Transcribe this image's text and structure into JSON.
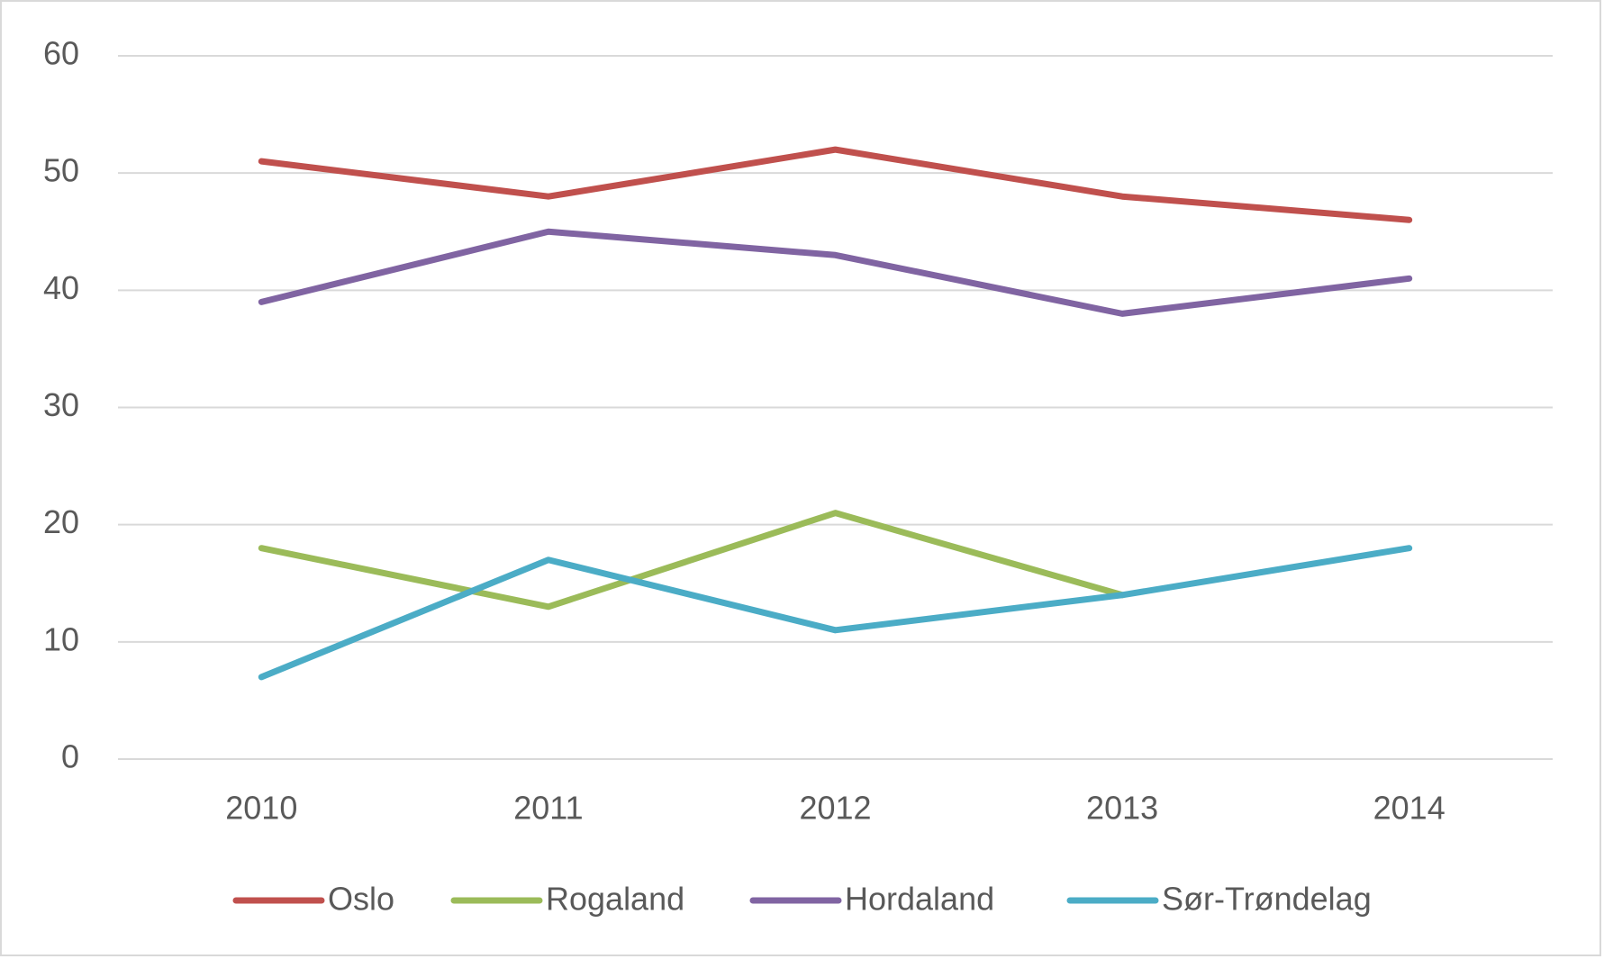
{
  "chart_data": {
    "type": "line",
    "categories": [
      "2010",
      "2011",
      "2012",
      "2013",
      "2014"
    ],
    "series": [
      {
        "name": "Oslo",
        "color": "#c0504d",
        "values": [
          51,
          48,
          52,
          48,
          46
        ]
      },
      {
        "name": "Rogaland",
        "color": "#9bbb59",
        "values": [
          18,
          13,
          21,
          14,
          null
        ]
      },
      {
        "name": "Hordaland",
        "color": "#8064a2",
        "values": [
          39,
          45,
          43,
          38,
          41
        ]
      },
      {
        "name": "Sør-Trøndelag",
        "color": "#4bacc6",
        "values": [
          7,
          17,
          11,
          14,
          18
        ]
      }
    ],
    "ylim": [
      0,
      60
    ],
    "yticks": [
      0,
      10,
      20,
      30,
      40,
      50,
      60
    ],
    "grid": true,
    "legend": "bottom"
  }
}
